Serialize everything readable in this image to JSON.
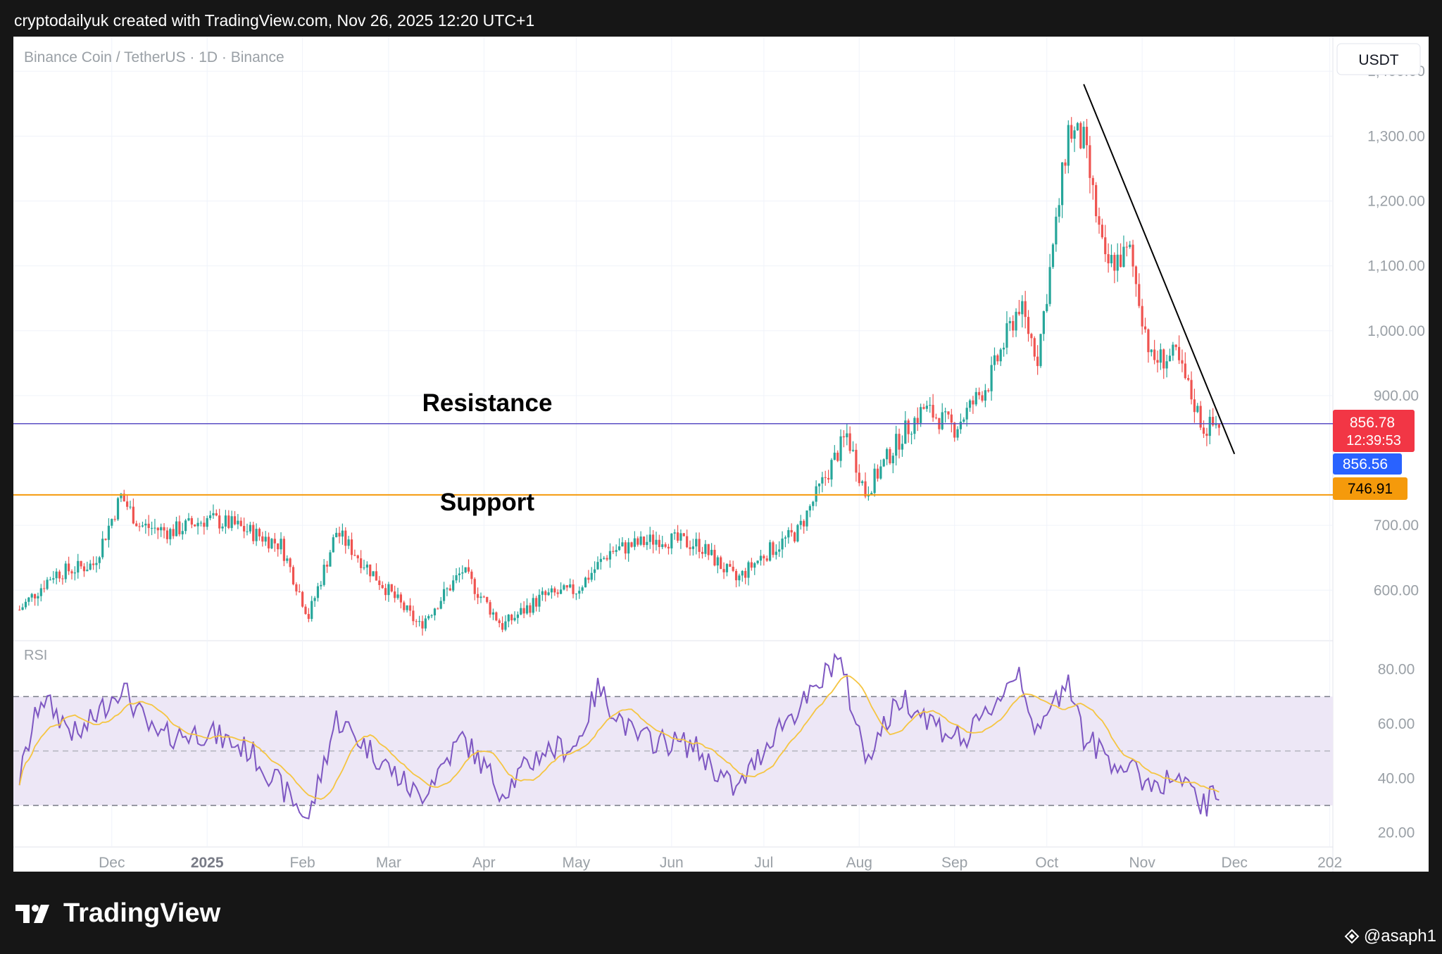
{
  "header": {
    "caption": "cryptodailyuk created with TradingView.com, Nov 26, 2025 12:20 UTC+1"
  },
  "footer": {
    "brand": "TradingView",
    "handle": "@asaph1"
  },
  "colors": {
    "up": "#26a69a",
    "down": "#ef5350",
    "resistance_line": "#5b4fc4",
    "support_line": "#f59a0b",
    "rsi_line": "#7e57c2",
    "rsi_ma": "#f5c542",
    "rsi_band": "#ede7f6",
    "price_tag": "#f23645",
    "bid_tag": "#2962ff"
  },
  "chart_data": {
    "type": "candlestick",
    "title": "Binance Coin / TetherUS · 1D · Binance",
    "currency_label": "USDT",
    "y_ticks": [
      "1,400.00",
      "1,300.00",
      "1,200.00",
      "1,100.00",
      "1,000.00",
      "900.00",
      "700.00",
      "600.00"
    ],
    "x_ticks": [
      "Dec",
      "2025",
      "Feb",
      "Mar",
      "Apr",
      "May",
      "Jun",
      "Jul",
      "Aug",
      "Sep",
      "Oct",
      "Nov",
      "Dec",
      "202"
    ],
    "ylim": [
      520,
      1410
    ],
    "series": [
      {
        "name": "Binance Coin / TetherUS",
        "points": [
          {
            "date": "2024-11-01",
            "close": 570
          },
          {
            "date": "2024-11-12",
            "close": 625
          },
          {
            "date": "2024-11-25",
            "close": 640
          },
          {
            "date": "2024-12-04",
            "close": 745
          },
          {
            "date": "2024-12-10",
            "close": 700
          },
          {
            "date": "2024-12-20",
            "close": 690
          },
          {
            "date": "2025-01-01",
            "close": 710
          },
          {
            "date": "2025-01-10",
            "close": 700
          },
          {
            "date": "2025-01-25",
            "close": 670
          },
          {
            "date": "2025-02-03",
            "close": 560
          },
          {
            "date": "2025-02-12",
            "close": 690
          },
          {
            "date": "2025-02-25",
            "close": 620
          },
          {
            "date": "2025-03-11",
            "close": 545
          },
          {
            "date": "2025-03-25",
            "close": 630
          },
          {
            "date": "2025-04-07",
            "close": 545
          },
          {
            "date": "2025-04-20",
            "close": 590
          },
          {
            "date": "2025-05-01",
            "close": 600
          },
          {
            "date": "2025-05-12",
            "close": 660
          },
          {
            "date": "2025-05-28",
            "close": 680
          },
          {
            "date": "2025-06-10",
            "close": 670
          },
          {
            "date": "2025-06-22",
            "close": 615
          },
          {
            "date": "2025-07-01",
            "close": 655
          },
          {
            "date": "2025-07-12",
            "close": 690
          },
          {
            "date": "2025-07-28",
            "close": 840
          },
          {
            "date": "2025-08-03",
            "close": 750
          },
          {
            "date": "2025-08-15",
            "close": 840
          },
          {
            "date": "2025-08-22",
            "close": 880
          },
          {
            "date": "2025-09-01",
            "close": 850
          },
          {
            "date": "2025-09-12",
            "close": 920
          },
          {
            "date": "2025-09-22",
            "close": 1040
          },
          {
            "date": "2025-09-28",
            "close": 960
          },
          {
            "date": "2025-10-04",
            "close": 1160
          },
          {
            "date": "2025-10-08",
            "close": 1310
          },
          {
            "date": "2025-10-13",
            "close": 1290
          },
          {
            "date": "2025-10-20",
            "close": 1100
          },
          {
            "date": "2025-10-28",
            "close": 1120
          },
          {
            "date": "2025-11-04",
            "close": 955
          },
          {
            "date": "2025-11-12",
            "close": 960
          },
          {
            "date": "2025-11-21",
            "close": 850
          },
          {
            "date": "2025-11-26",
            "close": 856.78
          }
        ]
      }
    ],
    "levels": [
      {
        "label": "Resistance",
        "value": 856.78
      },
      {
        "label": "Support",
        "value": 746.91
      }
    ],
    "trendline": [
      {
        "date": "2025-10-13",
        "value": 1380
      },
      {
        "date": "2025-12-01",
        "value": 810
      }
    ],
    "price_tags": {
      "last": "856.78",
      "countdown": "12:39:53",
      "bid": "856.56",
      "support": "746.91"
    },
    "rsi": {
      "label": "RSI",
      "y_ticks": [
        "80.00",
        "60.00",
        "40.00",
        "20.00"
      ],
      "ylim": [
        15,
        90
      ],
      "bands": [
        30,
        50,
        70
      ],
      "points": [
        {
          "date": "2024-11-01",
          "value": 40
        },
        {
          "date": "2024-11-08",
          "value": 70
        },
        {
          "date": "2024-11-20",
          "value": 55
        },
        {
          "date": "2024-12-04",
          "value": 74
        },
        {
          "date": "2024-12-15",
          "value": 55
        },
        {
          "date": "2025-01-01",
          "value": 57
        },
        {
          "date": "2025-01-15",
          "value": 50
        },
        {
          "date": "2025-02-03",
          "value": 25
        },
        {
          "date": "2025-02-12",
          "value": 62
        },
        {
          "date": "2025-02-28",
          "value": 45
        },
        {
          "date": "2025-03-11",
          "value": 33
        },
        {
          "date": "2025-03-25",
          "value": 55
        },
        {
          "date": "2025-04-07",
          "value": 35
        },
        {
          "date": "2025-04-20",
          "value": 50
        },
        {
          "date": "2025-05-01",
          "value": 52
        },
        {
          "date": "2025-05-08",
          "value": 73
        },
        {
          "date": "2025-05-20",
          "value": 55
        },
        {
          "date": "2025-06-08",
          "value": 52
        },
        {
          "date": "2025-06-22",
          "value": 35
        },
        {
          "date": "2025-07-05",
          "value": 58
        },
        {
          "date": "2025-07-18",
          "value": 72
        },
        {
          "date": "2025-07-25",
          "value": 86
        },
        {
          "date": "2025-08-03",
          "value": 48
        },
        {
          "date": "2025-08-15",
          "value": 70
        },
        {
          "date": "2025-08-28",
          "value": 58
        },
        {
          "date": "2025-09-05",
          "value": 54
        },
        {
          "date": "2025-09-22",
          "value": 80
        },
        {
          "date": "2025-09-28",
          "value": 55
        },
        {
          "date": "2025-10-08",
          "value": 78
        },
        {
          "date": "2025-10-13",
          "value": 55
        },
        {
          "date": "2025-10-22",
          "value": 47
        },
        {
          "date": "2025-11-04",
          "value": 38
        },
        {
          "date": "2025-11-12",
          "value": 40
        },
        {
          "date": "2025-11-21",
          "value": 30
        },
        {
          "date": "2025-11-26",
          "value": 35
        }
      ]
    }
  }
}
